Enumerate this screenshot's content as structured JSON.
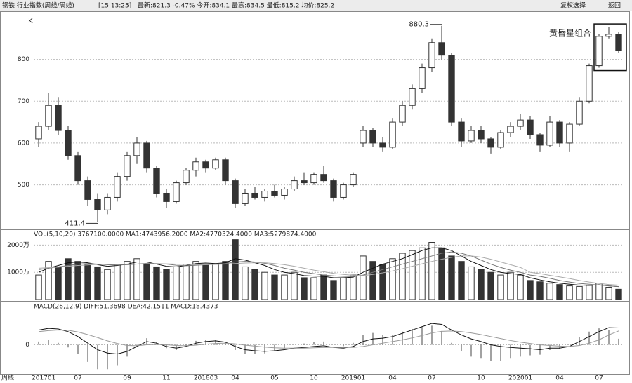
{
  "toolbar": {
    "title": "钢铁 行业指数(周线/周线)",
    "time": "[15 13:25]",
    "quote": "最新:821.3 -0.47% 今开:834.1 最高:834.5 最低:815.2 均价:825.2",
    "buttons": [
      "复权选择",
      "返回"
    ]
  },
  "chart_data": [
    {
      "type": "candlestick",
      "label": "K",
      "period_label": "周线",
      "categories": [
        "201701",
        null,
        null,
        null,
        "07",
        null,
        null,
        null,
        null,
        "09",
        null,
        null,
        null,
        "11",
        null,
        null,
        null,
        "201803",
        null,
        null,
        "04",
        null,
        null,
        null,
        "05",
        null,
        null,
        null,
        "10",
        null,
        null,
        null,
        "201901",
        null,
        null,
        null,
        "04",
        null,
        null,
        null,
        "07",
        null,
        null,
        null,
        null,
        "10",
        null,
        null,
        null,
        "202001",
        null,
        null,
        null,
        "04",
        null,
        null,
        null,
        "07",
        null,
        null
      ],
      "open": [
        610,
        640,
        690,
        630,
        570,
        510,
        465,
        440,
        470,
        520,
        570,
        600,
        540,
        480,
        460,
        505,
        535,
        555,
        540,
        560,
        510,
        455,
        480,
        470,
        485,
        475,
        490,
        510,
        505,
        525,
        510,
        470,
        500,
        600,
        630,
        600,
        590,
        650,
        690,
        730,
        780,
        840,
        810,
        650,
        605,
        630,
        610,
        590,
        625,
        640,
        655,
        620,
        595,
        650,
        600,
        645,
        700,
        785,
        855,
        860
      ],
      "high": [
        650,
        720,
        710,
        640,
        580,
        520,
        480,
        480,
        530,
        580,
        615,
        605,
        545,
        490,
        510,
        540,
        565,
        560,
        565,
        565,
        515,
        490,
        495,
        490,
        500,
        495,
        520,
        530,
        530,
        545,
        515,
        505,
        530,
        640,
        635,
        615,
        660,
        700,
        740,
        790,
        850,
        880.3,
        815,
        660,
        640,
        640,
        615,
        630,
        650,
        670,
        665,
        625,
        665,
        655,
        650,
        710,
        790,
        860,
        878,
        865
      ],
      "low": [
        590,
        630,
        620,
        560,
        500,
        450,
        411.4,
        430,
        460,
        510,
        550,
        530,
        470,
        445,
        455,
        500,
        520,
        530,
        535,
        500,
        445,
        450,
        465,
        460,
        470,
        465,
        485,
        500,
        500,
        505,
        460,
        465,
        495,
        590,
        590,
        580,
        585,
        640,
        680,
        720,
        770,
        800,
        640,
        590,
        600,
        600,
        575,
        585,
        615,
        630,
        610,
        580,
        590,
        590,
        580,
        640,
        695,
        780,
        850,
        815
      ],
      "close": [
        640,
        690,
        630,
        570,
        510,
        465,
        440,
        470,
        520,
        570,
        600,
        540,
        480,
        460,
        505,
        535,
        555,
        540,
        560,
        510,
        455,
        480,
        470,
        485,
        475,
        490,
        510,
        505,
        525,
        510,
        470,
        500,
        525,
        630,
        600,
        590,
        650,
        690,
        730,
        780,
        840,
        810,
        650,
        605,
        630,
        610,
        590,
        625,
        640,
        655,
        620,
        595,
        650,
        600,
        645,
        700,
        785,
        855,
        860,
        821.3
      ],
      "ylim": [
        397,
        905
      ],
      "yticks": [
        500,
        600,
        700,
        800
      ],
      "grid": true,
      "pattern_label": "黄昏星组合",
      "colors": {
        "up": "#ffffff",
        "down": "#333333",
        "edge": "#333333"
      }
    },
    {
      "type": "bar",
      "header": "VOL(5,10,20) 3767100.0000 MA1:4743956.2000 MA2:4770324.4000 MA3:5279874.4000",
      "values": [
        900,
        1400,
        1200,
        1500,
        1400,
        1300,
        1200,
        1100,
        1300,
        1400,
        1500,
        1300,
        1200,
        1100,
        1200,
        1300,
        1400,
        1300,
        1300,
        1400,
        2200,
        1200,
        1100,
        1000,
        900,
        900,
        1000,
        800,
        800,
        900,
        700,
        800,
        900,
        1600,
        1400,
        1300,
        1500,
        1700,
        1800,
        1900,
        2100,
        1900,
        1600,
        1400,
        1200,
        1100,
        1000,
        900,
        1000,
        900,
        700,
        650,
        600,
        550,
        500,
        480,
        520,
        600,
        450,
        377
      ],
      "series": [
        {
          "color": "#111111",
          "values": [
            1000,
            1150,
            1250,
            1350,
            1380,
            1350,
            1280,
            1220,
            1250,
            1300,
            1380,
            1380,
            1300,
            1220,
            1200,
            1250,
            1320,
            1340,
            1320,
            1350,
            1500,
            1450,
            1350,
            1250,
            1100,
            1000,
            950,
            880,
            860,
            850,
            800,
            800,
            820,
            1000,
            1150,
            1300,
            1400,
            1500,
            1650,
            1800,
            1900,
            1900,
            1800,
            1600,
            1400,
            1250,
            1100,
            1000,
            950,
            920,
            800,
            720,
            650,
            600,
            560,
            530,
            520,
            540,
            500,
            474
          ]
        },
        {
          "color": "#777777",
          "values": [
            1100,
            1150,
            1200,
            1250,
            1300,
            1320,
            1300,
            1280,
            1270,
            1280,
            1300,
            1330,
            1320,
            1300,
            1260,
            1240,
            1260,
            1280,
            1300,
            1320,
            1380,
            1400,
            1380,
            1330,
            1250,
            1150,
            1080,
            1000,
            950,
            900,
            870,
            850,
            840,
            900,
            1000,
            1100,
            1200,
            1300,
            1400,
            1500,
            1600,
            1700,
            1750,
            1700,
            1600,
            1450,
            1300,
            1180,
            1080,
            1000,
            900,
            850,
            780,
            700,
            640,
            590,
            560,
            530,
            500,
            477
          ]
        },
        {
          "color": "#aaaaaa",
          "values": [
            1150,
            1170,
            1190,
            1220,
            1250,
            1270,
            1290,
            1300,
            1300,
            1300,
            1300,
            1310,
            1310,
            1310,
            1300,
            1290,
            1280,
            1280,
            1290,
            1300,
            1320,
            1340,
            1350,
            1350,
            1320,
            1280,
            1220,
            1150,
            1080,
            1020,
            960,
            920,
            890,
            880,
            920,
            980,
            1050,
            1130,
            1220,
            1310,
            1400,
            1480,
            1550,
            1600,
            1600,
            1560,
            1480,
            1380,
            1280,
            1180,
            1000,
            950,
            890,
            830,
            770,
            700,
            640,
            590,
            550,
            528
          ]
        }
      ],
      "ylim": [
        0,
        2500
      ],
      "yticks": [
        {
          "value": 1000,
          "label": "1000万"
        },
        {
          "value": 2000,
          "label": "2000万"
        }
      ],
      "grid": true
    },
    {
      "type": "macd",
      "header": "MACD(26,12,9) DIFF:51.3698 DEA:42.1511 MACD:18.4373",
      "series": [
        {
          "color": "#111111",
          "values": [
            45,
            50,
            48,
            40,
            25,
            5,
            -15,
            -25,
            -28,
            -20,
            -5,
            10,
            5,
            -5,
            -10,
            -5,
            5,
            10,
            12,
            8,
            -5,
            -15,
            -18,
            -20,
            -18,
            -15,
            -10,
            -8,
            -5,
            -3,
            -8,
            -10,
            -5,
            10,
            18,
            20,
            25,
            35,
            45,
            55,
            65,
            62,
            45,
            30,
            18,
            10,
            0,
            -5,
            -8,
            -10,
            -12,
            -15,
            -10,
            -10,
            -5,
            10,
            25,
            40,
            52,
            51.3698
          ]
        },
        {
          "color": "#999999",
          "values": [
            40,
            43,
            45,
            44,
            39,
            31,
            22,
            12,
            4,
            -2,
            -3,
            0,
            1,
            0,
            -2,
            -3,
            -1,
            2,
            4,
            5,
            3,
            -1,
            -4,
            -7,
            -9,
            -10,
            -10,
            -10,
            -9,
            -8,
            -8,
            -8,
            -8,
            -5,
            0,
            5,
            10,
            15,
            21,
            28,
            36,
            41,
            42,
            40,
            36,
            31,
            25,
            19,
            13,
            8,
            4,
            0,
            -2,
            -4,
            -5,
            -2,
            5,
            15,
            30,
            42.1511
          ]
        }
      ],
      "histogram": [
        10,
        14,
        6,
        -8,
        -28,
        -52,
        -74,
        -74,
        -64,
        -36,
        -4,
        20,
        8,
        -10,
        -16,
        -4,
        12,
        16,
        16,
        6,
        -16,
        -28,
        -28,
        -26,
        -18,
        -10,
        0,
        4,
        8,
        10,
        0,
        -4,
        6,
        30,
        36,
        30,
        30,
        40,
        48,
        54,
        58,
        42,
        6,
        -20,
        -36,
        -42,
        -50,
        -48,
        -42,
        -36,
        -32,
        -30,
        -16,
        -12,
        0,
        24,
        40,
        50,
        44,
        18.4373
      ],
      "ylim": [
        -80,
        110
      ],
      "yticks": [
        0
      ],
      "grid": true
    }
  ]
}
